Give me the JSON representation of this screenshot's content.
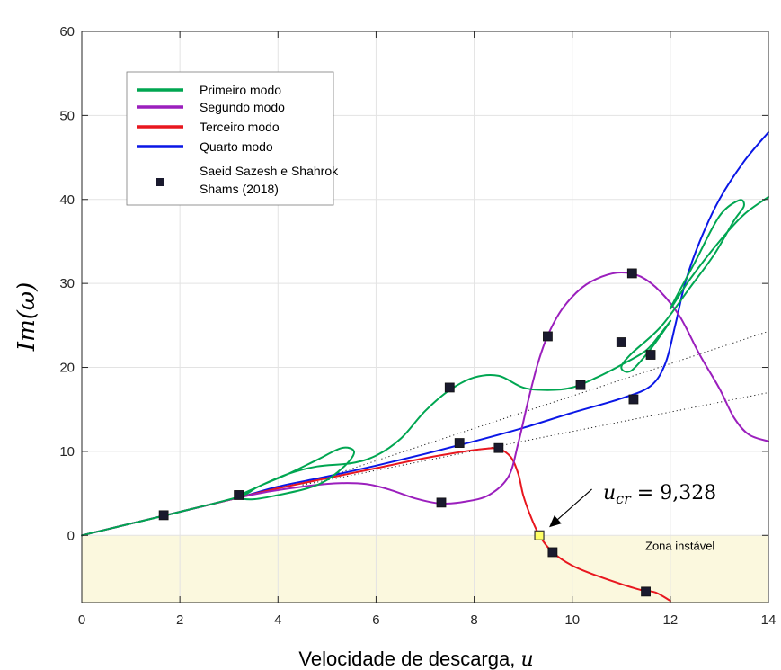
{
  "chart_data": {
    "type": "line",
    "xlabel": "Velocidade de descarga, u",
    "ylabel": "Im(ω)",
    "xlim": [
      0,
      14
    ],
    "ylim": [
      -8,
      60
    ],
    "xticks": [
      "0",
      "2",
      "4",
      "6",
      "8",
      "10",
      "12",
      "14"
    ],
    "yticks": [
      "0",
      "10",
      "20",
      "30",
      "40",
      "50",
      "60"
    ],
    "grid": true,
    "legend_position": "upper-left",
    "series": [
      {
        "name": "Primeiro modo",
        "color": "#00a651",
        "points": [
          [
            0,
            0
          ],
          [
            1,
            1.4
          ],
          [
            2,
            2.8
          ],
          [
            3.2,
            4.6
          ],
          [
            3.6,
            5.8
          ],
          [
            4.2,
            7.3
          ],
          [
            4.8,
            9.0
          ],
          [
            5.3,
            10.4
          ],
          [
            5.55,
            10.0
          ],
          [
            5.4,
            8.5
          ],
          [
            5.0,
            6.6
          ],
          [
            4.6,
            5.6
          ],
          [
            4.0,
            4.8
          ],
          [
            3.5,
            4.3
          ],
          [
            3.2,
            4.6
          ],
          [
            3.6,
            5.8
          ],
          [
            4.2,
            7.3
          ],
          [
            4.8,
            8.2
          ],
          [
            5.5,
            8.6
          ],
          [
            6.0,
            9.5
          ],
          [
            6.5,
            11.5
          ],
          [
            7.0,
            14.8
          ],
          [
            7.5,
            17.3
          ],
          [
            8.0,
            18.8
          ],
          [
            8.5,
            19.0
          ],
          [
            9.0,
            17.6
          ],
          [
            9.5,
            17.3
          ],
          [
            10.0,
            17.6
          ],
          [
            10.5,
            18.8
          ],
          [
            11.0,
            20.3
          ],
          [
            11.5,
            22.0
          ],
          [
            11.8,
            24.0
          ],
          [
            12.0,
            25.5
          ],
          [
            11.6,
            22.2
          ],
          [
            11.2,
            19.6
          ],
          [
            11.0,
            20.0
          ],
          [
            11.2,
            21.6
          ],
          [
            11.8,
            24.8
          ],
          [
            12.4,
            29.5
          ],
          [
            12.9,
            33.5
          ],
          [
            13.3,
            37.5
          ],
          [
            13.5,
            39.2
          ],
          [
            13.4,
            39.9
          ],
          [
            13.0,
            38.0
          ],
          [
            12.5,
            32.5
          ],
          [
            12.0,
            27.0
          ],
          [
            12.4,
            30.5
          ],
          [
            13.0,
            35.0
          ],
          [
            13.5,
            38.2
          ],
          [
            14.0,
            40.3
          ]
        ]
      },
      {
        "name": "Segundo modo",
        "color": "#9b1fbd",
        "points": [
          [
            0,
            0
          ],
          [
            1,
            1.4
          ],
          [
            2,
            2.8
          ],
          [
            3.2,
            4.5
          ],
          [
            3.8,
            5.2
          ],
          [
            4.5,
            5.8
          ],
          [
            5.2,
            6.2
          ],
          [
            5.8,
            6.1
          ],
          [
            6.3,
            5.4
          ],
          [
            6.8,
            4.4
          ],
          [
            7.3,
            3.8
          ],
          [
            7.8,
            4.0
          ],
          [
            8.3,
            4.8
          ],
          [
            8.7,
            7.0
          ],
          [
            8.9,
            11.0
          ],
          [
            9.1,
            16.0
          ],
          [
            9.3,
            20.5
          ],
          [
            9.5,
            23.8
          ],
          [
            9.8,
            27.0
          ],
          [
            10.2,
            29.5
          ],
          [
            10.6,
            30.8
          ],
          [
            11.0,
            31.3
          ],
          [
            11.4,
            30.8
          ],
          [
            11.8,
            29.0
          ],
          [
            12.2,
            26.0
          ],
          [
            12.6,
            21.5
          ],
          [
            13.0,
            17.5
          ],
          [
            13.3,
            14.0
          ],
          [
            13.6,
            12.0
          ],
          [
            14.0,
            11.2
          ]
        ]
      },
      {
        "name": "Terceiro modo",
        "color": "#e8171f",
        "points": [
          [
            0,
            0
          ],
          [
            1,
            1.4
          ],
          [
            2,
            2.8
          ],
          [
            3.2,
            4.5
          ],
          [
            4,
            5.6
          ],
          [
            5,
            6.8
          ],
          [
            6,
            8.0
          ],
          [
            7,
            9.2
          ],
          [
            7.7,
            9.9
          ],
          [
            8.2,
            10.3
          ],
          [
            8.5,
            10.3
          ],
          [
            8.75,
            9.3
          ],
          [
            8.9,
            7.3
          ],
          [
            9.0,
            4.8
          ],
          [
            9.15,
            2.3
          ],
          [
            9.33,
            0
          ],
          [
            9.6,
            -2.0
          ],
          [
            10.0,
            -3.6
          ],
          [
            10.5,
            -4.8
          ],
          [
            11.0,
            -5.8
          ],
          [
            11.4,
            -6.5
          ],
          [
            11.7,
            -6.8
          ],
          [
            12.0,
            -7.8
          ]
        ]
      },
      {
        "name": "Quarto modo",
        "color": "#0a17e6",
        "points": [
          [
            0,
            0
          ],
          [
            1,
            1.4
          ],
          [
            2,
            2.8
          ],
          [
            3.2,
            4.5
          ],
          [
            4,
            5.8
          ],
          [
            5,
            7.0
          ],
          [
            6,
            8.3
          ],
          [
            7,
            9.7
          ],
          [
            8,
            11.2
          ],
          [
            9,
            12.8
          ],
          [
            10,
            14.6
          ],
          [
            11,
            16.3
          ],
          [
            11.6,
            17.8
          ],
          [
            11.9,
            20.5
          ],
          [
            12.1,
            25.0
          ],
          [
            12.3,
            30.0
          ],
          [
            12.6,
            35.0
          ],
          [
            13.0,
            40.0
          ],
          [
            13.5,
            44.5
          ],
          [
            14.0,
            48.0
          ]
        ]
      },
      {
        "name": "Saeid Sazesh e Shahrok Shams (2018)",
        "type": "scatter",
        "color": "#1a1a2e",
        "points": [
          [
            1.67,
            2.4
          ],
          [
            3.2,
            4.8
          ],
          [
            7.33,
            3.9
          ],
          [
            7.5,
            17.6
          ],
          [
            7.7,
            11.0
          ],
          [
            8.5,
            10.4
          ],
          [
            9.5,
            23.7
          ],
          [
            9.6,
            -2.0
          ],
          [
            10.17,
            17.9
          ],
          [
            11.0,
            23.0
          ],
          [
            11.22,
            31.2
          ],
          [
            11.25,
            16.2
          ],
          [
            11.6,
            21.5
          ],
          [
            11.5,
            -6.7
          ]
        ]
      }
    ],
    "dotted_lines": [
      {
        "points": [
          [
            4.5,
            6.0
          ],
          [
            14.0,
            24.3
          ]
        ]
      },
      {
        "points": [
          [
            4.5,
            6.0
          ],
          [
            14.0,
            17.0
          ]
        ]
      }
    ],
    "critical_point": {
      "x": 9.328,
      "y": 0,
      "label": "u_cr = 9,328"
    },
    "unstable_region": {
      "y_from": -8,
      "y_to": 0,
      "label": "Zona instável",
      "color": "#fbf8de"
    }
  }
}
